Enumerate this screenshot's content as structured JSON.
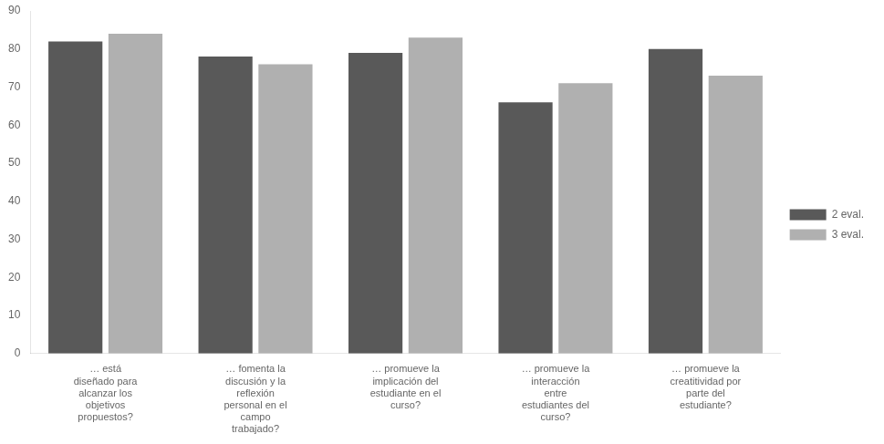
{
  "chart_data": {
    "type": "bar",
    "categories": [
      "… está\ndiseñado para\nalcanzar los\nobjetivos\npropuestos?",
      "… fomenta la\ndiscusión y la\nreflexión\npersonal en el\ncampo\ntrabajado?",
      "… promueve la\nimplicación del\nestudiante en el\ncurso?",
      "… promueve la\ninteracción\nentre\nestudiantes del\ncurso?",
      "… promueve la\ncreatitividad por\nparte del\nestudiante?"
    ],
    "series": [
      {
        "name": "2 eval.",
        "color": "#595959",
        "values": [
          82,
          78,
          79,
          66,
          80
        ]
      },
      {
        "name": "3 eval.",
        "color": "#b0b0b0",
        "values": [
          84,
          76,
          83,
          71,
          73
        ]
      }
    ],
    "ylim": [
      0,
      90
    ],
    "yticks": [
      0,
      10,
      20,
      30,
      40,
      50,
      60,
      70,
      80,
      90
    ],
    "grid": false,
    "legend": "right"
  }
}
